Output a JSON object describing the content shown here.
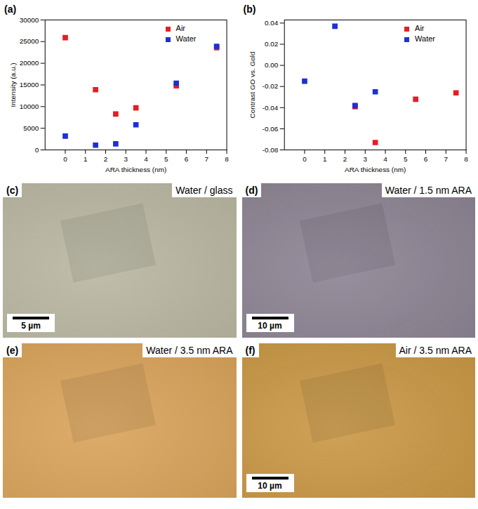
{
  "chart_data": [
    {
      "type": "scatter",
      "title": "(a)",
      "x_label": "ARA thickness (nm)",
      "y_label": "Intensity (a.u.)",
      "x": [
        0,
        1.5,
        2.5,
        3.5,
        5.5,
        7.5
      ],
      "series": [
        {
          "name": "Air",
          "color": "#e41e26",
          "marker": "square",
          "values": [
            25900,
            13900,
            8300,
            9700,
            14800,
            23600
          ]
        },
        {
          "name": "Water",
          "color": "#1f2fd6",
          "marker": "square",
          "values": [
            3200,
            1100,
            1400,
            5800,
            15400,
            23900
          ]
        }
      ],
      "xlim": [
        -1,
        8
      ],
      "xticks": [
        0,
        1,
        2,
        3,
        4,
        5,
        6,
        7,
        8
      ],
      "ylim": [
        0,
        30000
      ],
      "yticks": [
        0,
        5000,
        10000,
        15000,
        20000,
        25000,
        30000
      ],
      "legend": "upper right"
    },
    {
      "type": "scatter",
      "title": "(b)",
      "x_label": "ARA thickness (nm)",
      "y_label": "Contrast GO vs. Gold",
      "x": [
        0,
        1.5,
        2.5,
        3.5,
        5.5,
        7.5
      ],
      "series": [
        {
          "name": "Air",
          "color": "#e41e26",
          "marker": "square",
          "values": [
            null,
            null,
            -0.039,
            -0.073,
            -0.032,
            -0.026
          ]
        },
        {
          "name": "Water",
          "color": "#1f2fd6",
          "marker": "square",
          "values": [
            -0.015,
            0.037,
            -0.038,
            -0.025,
            null,
            null
          ]
        }
      ],
      "xlim": [
        -1,
        8
      ],
      "xticks": [
        0,
        1,
        2,
        3,
        4,
        5,
        6,
        7,
        8
      ],
      "ylim": [
        -0.08,
        0.043
      ],
      "yticks": [
        {
          "value": -0.08,
          "label": "-0.08"
        },
        {
          "value": -0.06,
          "label": "-0.06"
        },
        {
          "value": -0.04,
          "label": "-0.04"
        },
        {
          "value": -0.02,
          "label": "-0.02"
        },
        {
          "value": 0,
          "label": "0.00"
        },
        {
          "value": 0.02,
          "label": "0.02"
        },
        {
          "value": 0.04,
          "label": "0.04"
        }
      ],
      "legend": "upper right"
    }
  ],
  "images": [
    {
      "title": "(c)",
      "caption": "Water / glass",
      "scale_bar": "5 µm",
      "color": "#b9b7a2"
    },
    {
      "title": "(d)",
      "caption": "Water / 1.5 nm ARA",
      "scale_bar": "10 µm",
      "color": "#8d8393"
    },
    {
      "title": "(e)",
      "caption": "Water / 3.5 nm ARA",
      "color": "#d9a35a"
    },
    {
      "title": "(f)",
      "caption": "Air / 3.5 nm ARA",
      "scale_bar": "10 µm",
      "color": "#c99744"
    }
  ]
}
